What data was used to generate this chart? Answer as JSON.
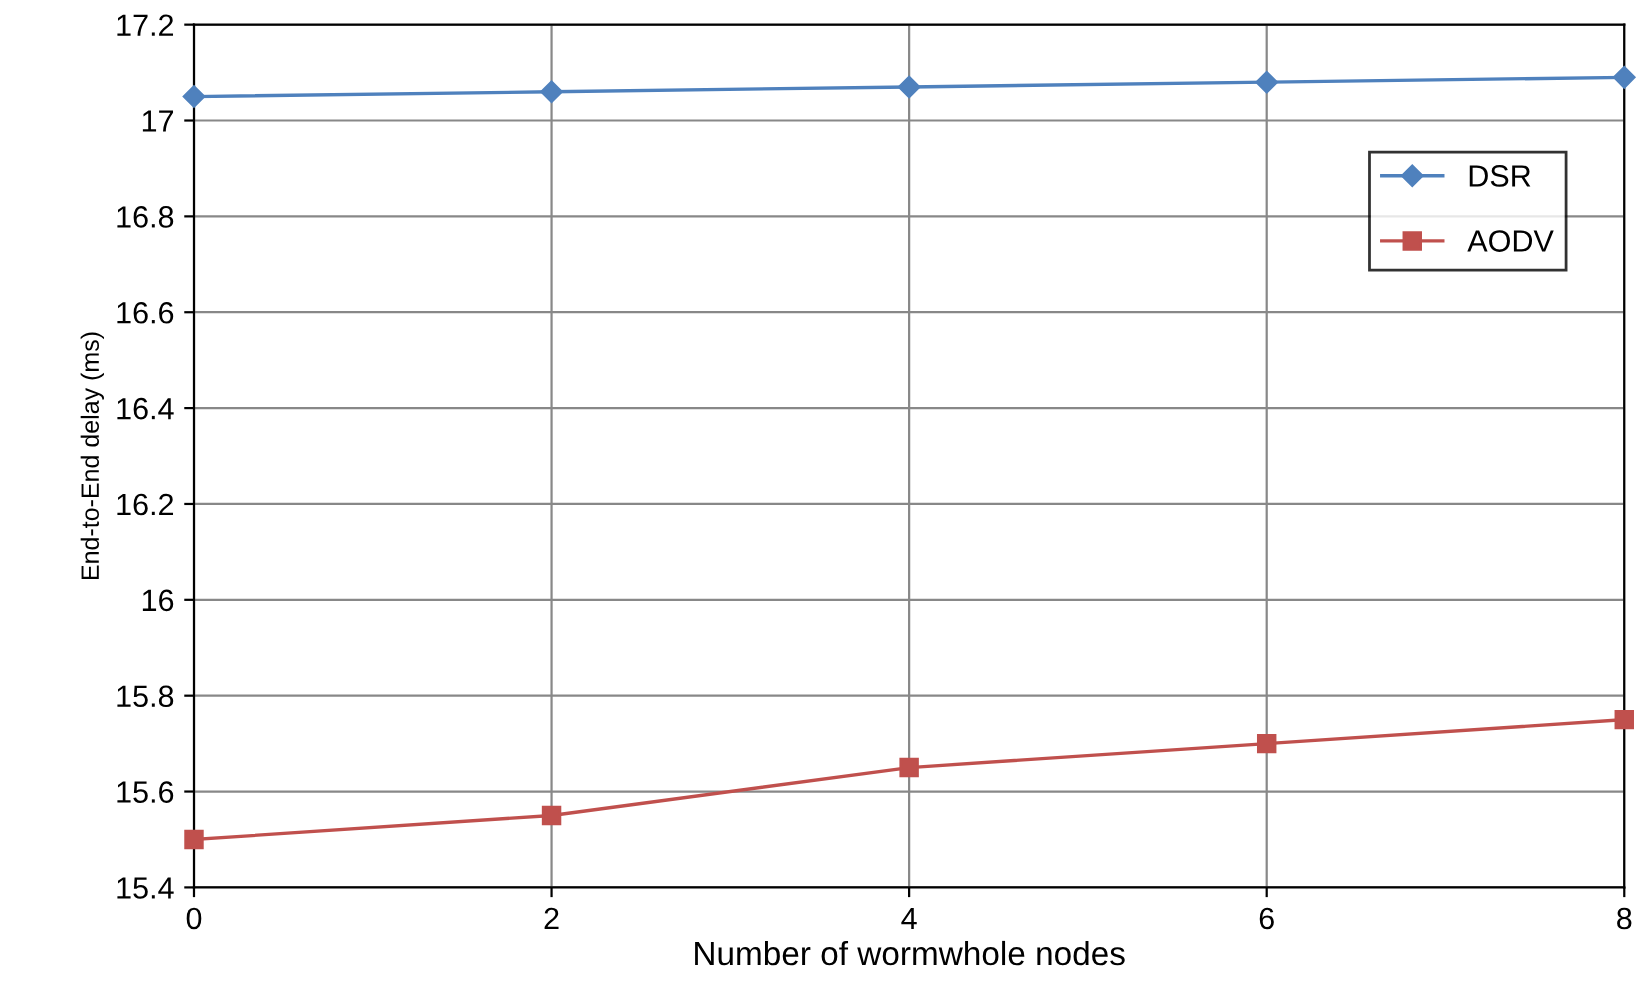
{
  "chart_data": {
    "type": "line",
    "xlabel": "Number of wormwhole nodes",
    "ylabel": "End-to-End delay (ms)",
    "x": [
      0,
      2,
      4,
      6,
      8
    ],
    "series": [
      {
        "name": "DSR",
        "color": "#4f81bd",
        "marker": "diamond",
        "values": [
          17.05,
          17.06,
          17.07,
          17.08,
          17.09
        ]
      },
      {
        "name": "AODV",
        "color": "#c0504d",
        "marker": "square",
        "values": [
          15.5,
          15.55,
          15.65,
          15.7,
          15.75
        ]
      }
    ],
    "xlim": [
      0,
      8
    ],
    "xticks": [
      0,
      2,
      4,
      6,
      8
    ],
    "ylim": [
      15.4,
      17.2
    ],
    "yticks": [
      15.4,
      15.6,
      15.8,
      16,
      16.2,
      16.4,
      16.6,
      16.8,
      17,
      17.2
    ],
    "grid": true,
    "legend": "top right",
    "line_style": "solid"
  }
}
